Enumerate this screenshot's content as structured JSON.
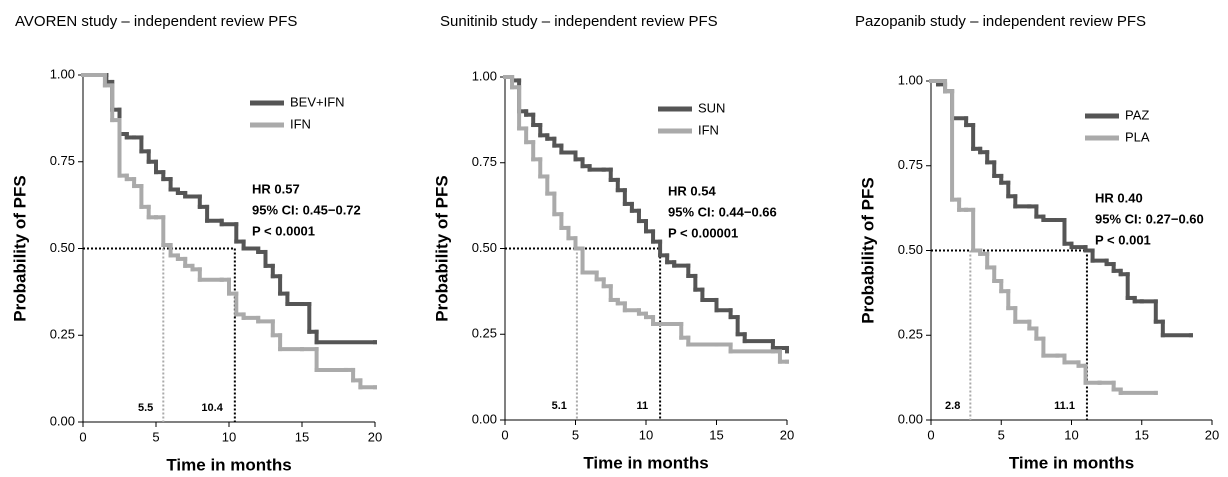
{
  "chart_data": [
    {
      "type": "step",
      "title": "AVOREN study – independent review PFS",
      "x_label": "Time in months",
      "y_label": "Probability of PFS",
      "xlim": [
        0,
        20
      ],
      "ylim": [
        0,
        1
      ],
      "xticks": [
        0,
        5,
        10,
        15,
        20
      ],
      "yticks": [
        {
          "value": 0,
          "label": "0.00"
        },
        0.25,
        {
          "value": 0.5,
          "label": "0.50"
        },
        0.75,
        {
          "value": 1,
          "label": "1.00"
        }
      ],
      "median_probability": 0.5,
      "annotation": [
        "HR 0.57",
        "95% CI: 0.45−0.72",
        "P < 0.0001"
      ],
      "series": [
        {
          "name": "BEV+IFN",
          "color": "#555555",
          "median": 10.4,
          "x": [
            0,
            1.6,
            2,
            2.5,
            3,
            3.5,
            4,
            4.5,
            5,
            5.5,
            6,
            6.5,
            7,
            8,
            8.5,
            9.5,
            10.5,
            11,
            12,
            12.5,
            13,
            13.5,
            14,
            15,
            15.5,
            16,
            20
          ],
          "values": [
            1,
            0.98,
            0.9,
            0.83,
            0.82,
            0.82,
            0.78,
            0.75,
            0.72,
            0.7,
            0.67,
            0.66,
            0.65,
            0.62,
            0.58,
            0.57,
            0.52,
            0.5,
            0.49,
            0.45,
            0.42,
            0.37,
            0.34,
            0.34,
            0.26,
            0.23,
            0.23
          ]
        },
        {
          "name": "IFN",
          "color": "#aaaaaa",
          "median": 5.5,
          "x": [
            0,
            1.5,
            2,
            2.5,
            3,
            3.5,
            4,
            4.5,
            5,
            5.5,
            6,
            6.5,
            7,
            7.5,
            8,
            9.5,
            10,
            10.5,
            11,
            12,
            13,
            13.5,
            15,
            16,
            18,
            18.5,
            19,
            20
          ],
          "values": [
            1,
            0.97,
            0.87,
            0.71,
            0.7,
            0.68,
            0.62,
            0.59,
            0.59,
            0.51,
            0.48,
            0.47,
            0.45,
            0.44,
            0.41,
            0.41,
            0.37,
            0.31,
            0.3,
            0.29,
            0.25,
            0.21,
            0.21,
            0.15,
            0.15,
            0.12,
            0.1,
            0.1
          ]
        }
      ]
    },
    {
      "type": "step",
      "title": "Sunitinib study – independent review PFS",
      "x_label": "Time in months",
      "y_label": "Probability of PFS",
      "xlim": [
        0,
        20
      ],
      "ylim": [
        0,
        1
      ],
      "xticks": [
        0,
        5,
        10,
        15,
        20
      ],
      "yticks": [
        {
          "value": 0,
          "label": "0.00"
        },
        0.25,
        {
          "value": 0.5,
          "label": "0.50"
        },
        0.75,
        {
          "value": 1,
          "label": "1.00"
        }
      ],
      "median_probability": 0.5,
      "annotation": [
        "HR 0.54",
        "95% CI: 0.44−0.66",
        "P < 0.00001"
      ],
      "series": [
        {
          "name": "SUN",
          "color": "#555555",
          "median": 11.0,
          "x": [
            0,
            0.5,
            1,
            1.5,
            2,
            2.5,
            3,
            3.5,
            4,
            5,
            5.5,
            6,
            7,
            7.5,
            8,
            8.5,
            9,
            9.5,
            10,
            10.5,
            11,
            11.5,
            12,
            13,
            13.5,
            14,
            15,
            16,
            16.5,
            17,
            19,
            20
          ],
          "values": [
            1,
            0.99,
            0.9,
            0.89,
            0.86,
            0.83,
            0.82,
            0.8,
            0.78,
            0.76,
            0.74,
            0.73,
            0.73,
            0.7,
            0.67,
            0.63,
            0.61,
            0.58,
            0.55,
            0.52,
            0.48,
            0.46,
            0.45,
            0.42,
            0.38,
            0.35,
            0.32,
            0.3,
            0.25,
            0.23,
            0.21,
            0.2
          ]
        },
        {
          "name": "IFN",
          "color": "#aaaaaa",
          "median": 5.1,
          "x": [
            0,
            0.5,
            1,
            1.5,
            2,
            2.5,
            3,
            3.5,
            4,
            4.5,
            5,
            5.5,
            6,
            6.5,
            7,
            7.5,
            8,
            8.5,
            9.5,
            10,
            10.5,
            12.5,
            13,
            15,
            16,
            19,
            19.5,
            20
          ],
          "values": [
            1,
            0.97,
            0.85,
            0.81,
            0.76,
            0.71,
            0.66,
            0.6,
            0.56,
            0.53,
            0.5,
            0.43,
            0.43,
            0.41,
            0.39,
            0.35,
            0.34,
            0.32,
            0.31,
            0.3,
            0.28,
            0.24,
            0.22,
            0.22,
            0.2,
            0.2,
            0.17,
            0.17
          ]
        }
      ]
    },
    {
      "type": "step",
      "title": "Pazopanib study – independent review PFS",
      "x_label": "Time in months",
      "y_label": "Probability of PFS",
      "xlim": [
        0,
        20
      ],
      "ylim": [
        0,
        1
      ],
      "xticks": [
        0,
        5,
        10,
        15,
        20
      ],
      "yticks": [
        {
          "value": 0,
          "label": "0.00"
        },
        0.25,
        {
          "value": 0.5,
          "label": "0.50"
        },
        0.75,
        {
          "value": 1,
          "label": "1.00"
        }
      ],
      "median_probability": 0.5,
      "annotation": [
        "HR 0.40",
        "95% CI: 0.27−0.60",
        "P < 0.001"
      ],
      "series": [
        {
          "name": "PAZ",
          "color": "#555555",
          "median": 11.1,
          "x": [
            0,
            0.5,
            1,
            1.5,
            2.5,
            3,
            3.5,
            4,
            4.5,
            5,
            5.5,
            6,
            7,
            7.5,
            8,
            9,
            9.5,
            10,
            11,
            11.5,
            12.5,
            13,
            13.5,
            14,
            14.5,
            15,
            16,
            16.5,
            18.5
          ],
          "values": [
            1,
            0.99,
            0.97,
            0.89,
            0.87,
            0.8,
            0.79,
            0.76,
            0.72,
            0.7,
            0.66,
            0.63,
            0.63,
            0.6,
            0.59,
            0.59,
            0.52,
            0.51,
            0.5,
            0.47,
            0.46,
            0.44,
            0.43,
            0.36,
            0.35,
            0.35,
            0.29,
            0.25,
            0.25
          ]
        },
        {
          "name": "PLA",
          "color": "#aaaaaa",
          "median": 2.8,
          "x": [
            0,
            1,
            1.5,
            2,
            2.5,
            3,
            3.5,
            4,
            4.5,
            5,
            5.5,
            6,
            7,
            7.5,
            8,
            9,
            9.5,
            10.5,
            11,
            12,
            13,
            13.5,
            16
          ],
          "values": [
            1,
            0.97,
            0.65,
            0.62,
            0.62,
            0.5,
            0.49,
            0.45,
            0.41,
            0.38,
            0.33,
            0.29,
            0.27,
            0.24,
            0.19,
            0.19,
            0.17,
            0.16,
            0.11,
            0.11,
            0.09,
            0.08,
            0.08
          ]
        }
      ]
    }
  ]
}
